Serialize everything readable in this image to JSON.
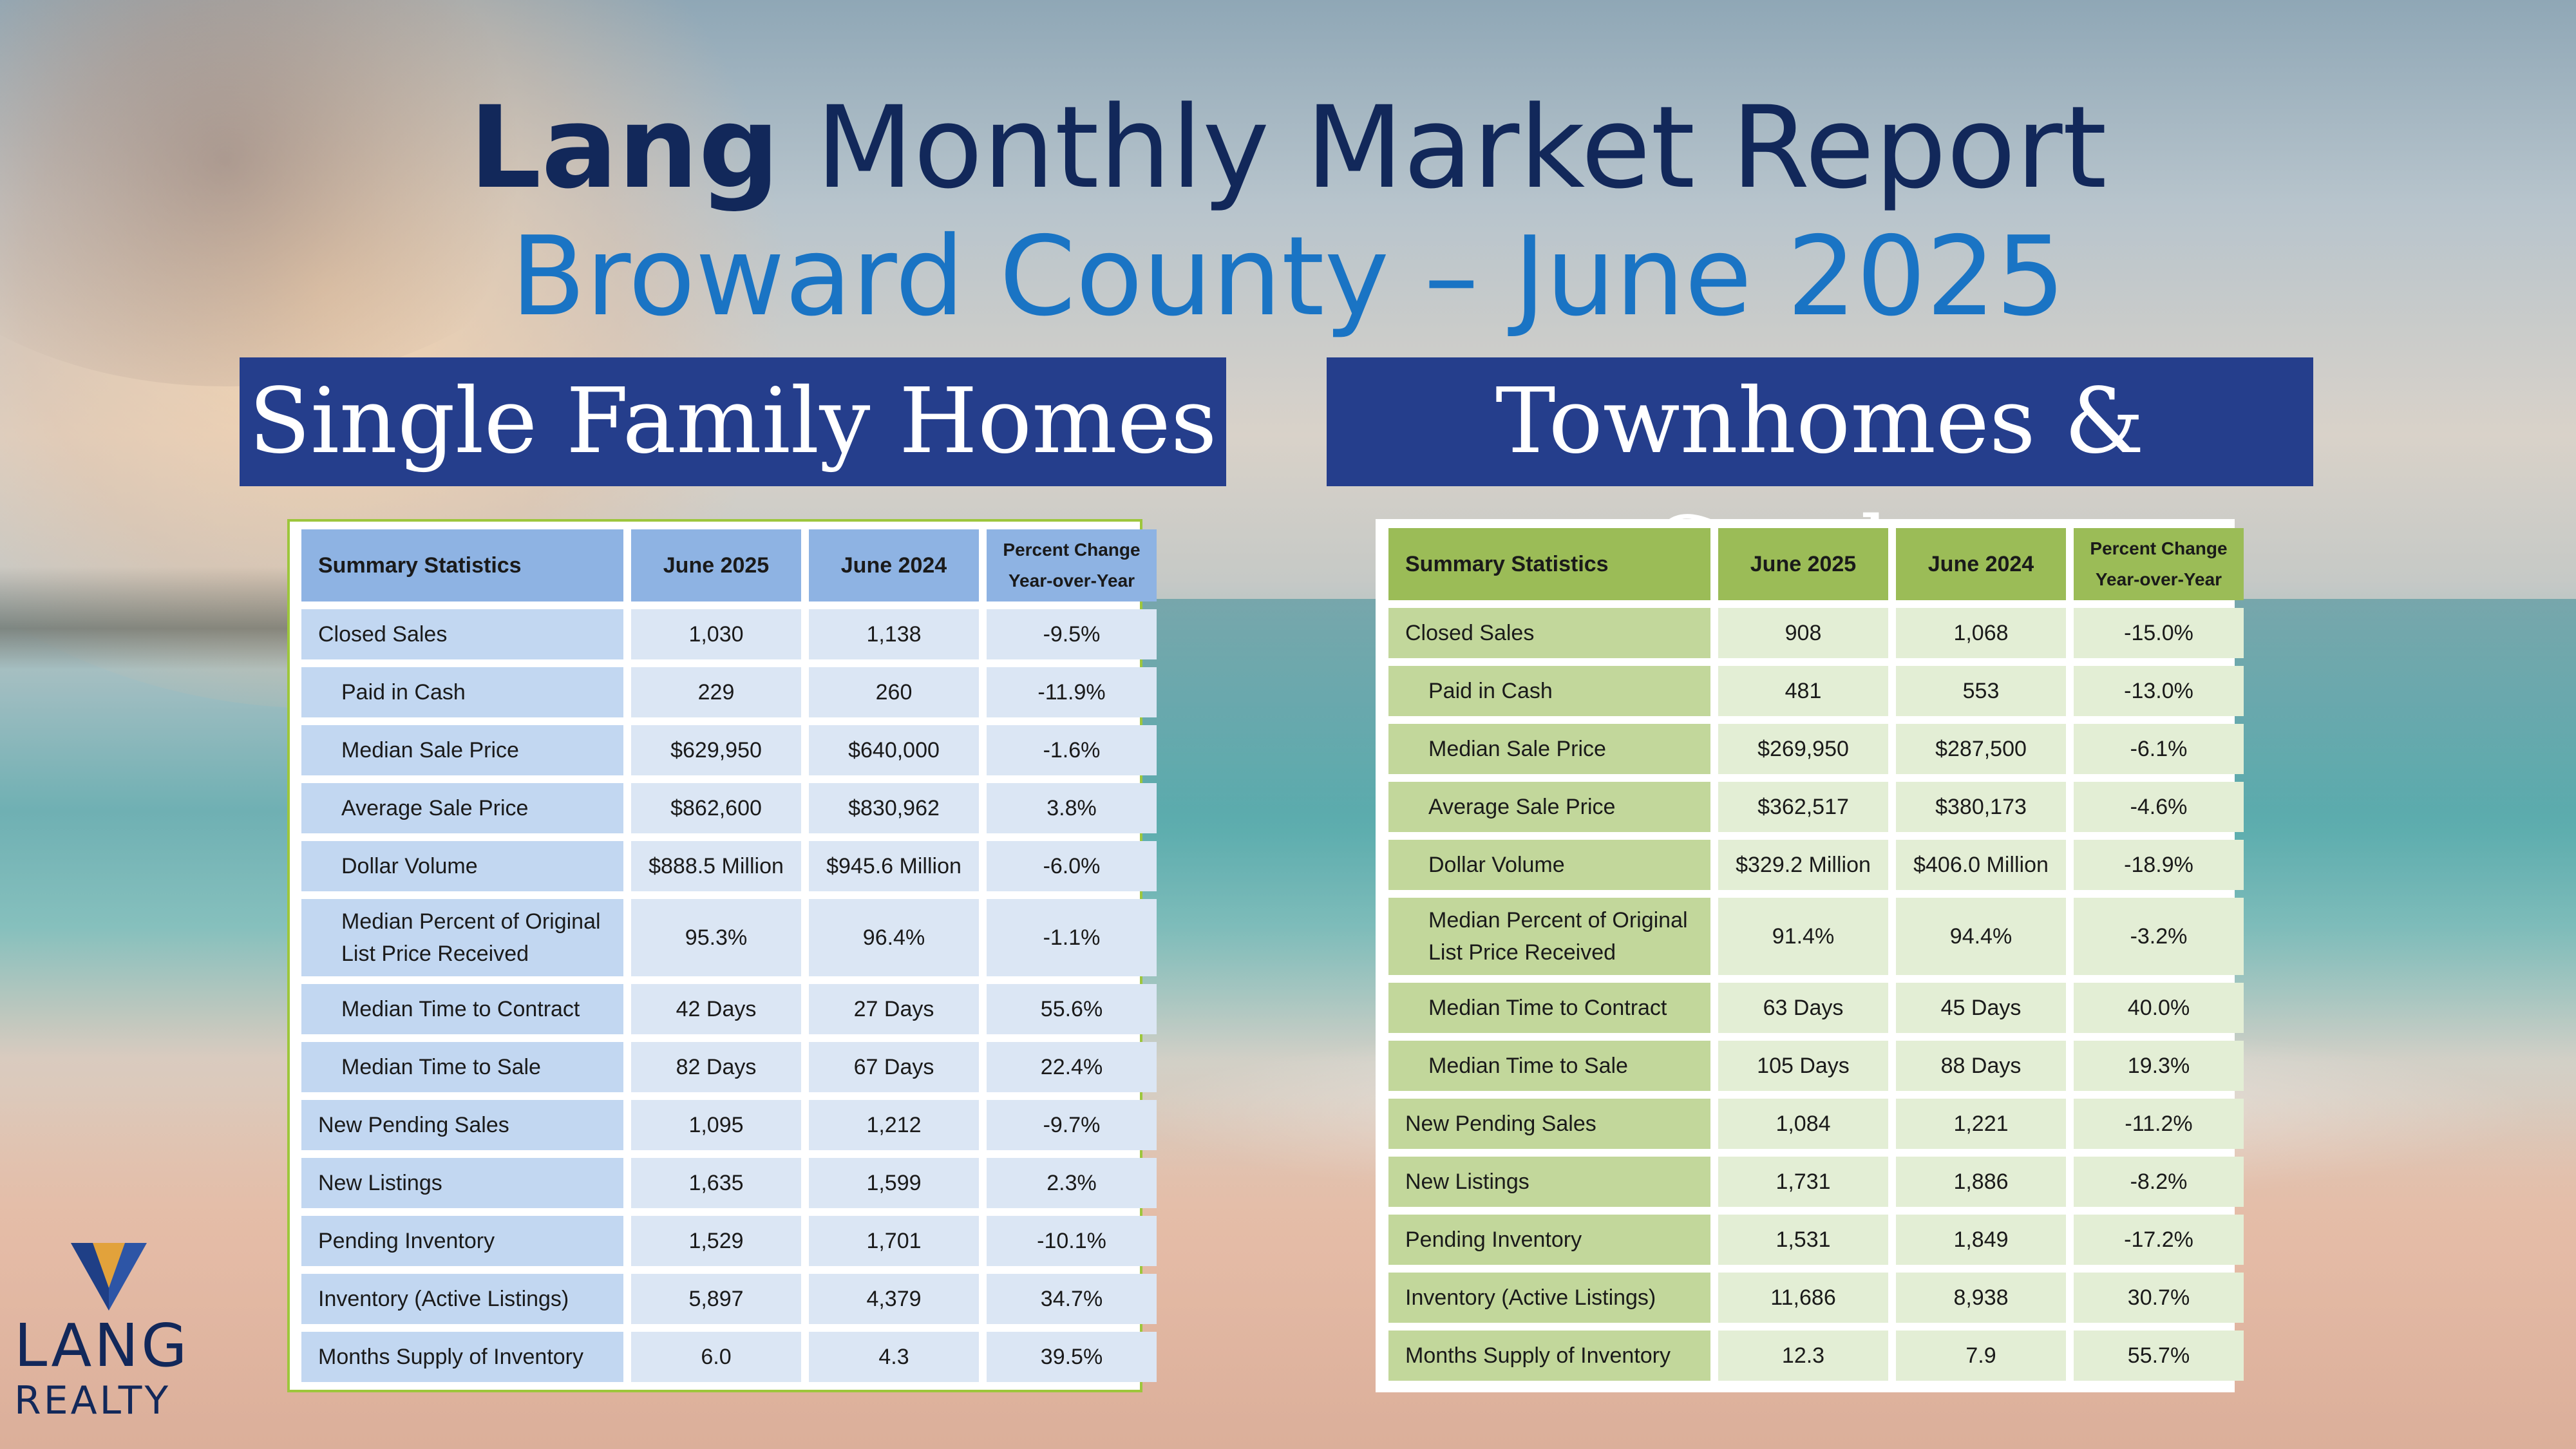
{
  "header": {
    "brand": "Lang",
    "title_rest": "Monthly Market Report",
    "subtitle": "Broward County – June 2025"
  },
  "colors": {
    "title_navy": "#12285a",
    "subtitle_blue": "#1a74c4",
    "banner_navy": "#253e8c",
    "sf_header": "#8eb3e3",
    "tc_header": "#9bbc57",
    "panel_border_green": "#9dc63c"
  },
  "single_family": {
    "banner": "Single Family Homes",
    "headers": [
      "Summary Statistics",
      "June 2025",
      "June 2024",
      "Percent Change",
      "Year-over-Year"
    ],
    "rows": [
      {
        "label": "Closed Sales",
        "v2025": "1,030",
        "v2024": "1,138",
        "pct": "-9.5%"
      },
      {
        "label": "Paid in Cash",
        "v2025": "229",
        "v2024": "260",
        "pct": "-11.9%"
      },
      {
        "label": "Median Sale Price",
        "v2025": "$629,950",
        "v2024": "$640,000",
        "pct": "-1.6%"
      },
      {
        "label": "Average Sale Price",
        "v2025": "$862,600",
        "v2024": "$830,962",
        "pct": "3.8%"
      },
      {
        "label": "Dollar Volume",
        "v2025": "$888.5 Million",
        "v2024": "$945.6 Million",
        "pct": "-6.0%"
      },
      {
        "label": "Median Percent of Original",
        "label2": "List Price Received",
        "v2025": "95.3%",
        "v2024": "96.4%",
        "pct": "-1.1%"
      },
      {
        "label": "Median Time to Contract",
        "v2025": "42 Days",
        "v2024": "27 Days",
        "pct": "55.6%"
      },
      {
        "label": "Median Time to Sale",
        "v2025": "82 Days",
        "v2024": "67 Days",
        "pct": "22.4%"
      },
      {
        "label": "New Pending Sales",
        "v2025": "1,095",
        "v2024": "1,212",
        "pct": "-9.7%"
      },
      {
        "label": "New Listings",
        "v2025": "1,635",
        "v2024": "1,599",
        "pct": "2.3%"
      },
      {
        "label": "Pending Inventory",
        "v2025": "1,529",
        "v2024": "1,701",
        "pct": "-10.1%"
      },
      {
        "label": "Inventory (Active Listings)",
        "v2025": "5,897",
        "v2024": "4,379",
        "pct": "34.7%"
      },
      {
        "label": "Months Supply of Inventory",
        "v2025": "6.0",
        "v2024": "4.3",
        "pct": "39.5%"
      }
    ]
  },
  "townhomes_condos": {
    "banner": "Townhomes & Condos",
    "headers": [
      "Summary Statistics",
      "June 2025",
      "June 2024",
      "Percent Change",
      "Year-over-Year"
    ],
    "rows": [
      {
        "label": "Closed Sales",
        "v2025": "908",
        "v2024": "1,068",
        "pct": "-15.0%"
      },
      {
        "label": "Paid in Cash",
        "v2025": "481",
        "v2024": "553",
        "pct": "-13.0%"
      },
      {
        "label": "Median Sale Price",
        "v2025": "$269,950",
        "v2024": "$287,500",
        "pct": "-6.1%"
      },
      {
        "label": "Average Sale Price",
        "v2025": "$362,517",
        "v2024": "$380,173",
        "pct": "-4.6%"
      },
      {
        "label": "Dollar Volume",
        "v2025": "$329.2 Million",
        "v2024": "$406.0 Million",
        "pct": "-18.9%"
      },
      {
        "label": "Median Percent of Original",
        "label2": "List Price Received",
        "v2025": "91.4%",
        "v2024": "94.4%",
        "pct": "-3.2%"
      },
      {
        "label": "Median Time to Contract",
        "v2025": "63 Days",
        "v2024": "45 Days",
        "pct": "40.0%"
      },
      {
        "label": "Median Time to Sale",
        "v2025": "105 Days",
        "v2024": "88 Days",
        "pct": "19.3%"
      },
      {
        "label": "New Pending Sales",
        "v2025": "1,084",
        "v2024": "1,221",
        "pct": "-11.2%"
      },
      {
        "label": "New Listings",
        "v2025": "1,731",
        "v2024": "1,886",
        "pct": "-8.2%"
      },
      {
        "label": "Pending Inventory",
        "v2025": "1,531",
        "v2024": "1,849",
        "pct": "-17.2%"
      },
      {
        "label": "Inventory (Active Listings)",
        "v2025": "11,686",
        "v2024": "8,938",
        "pct": "30.7%"
      },
      {
        "label": "Months Supply of Inventory",
        "v2025": "12.3",
        "v2024": "7.9",
        "pct": "55.7%"
      }
    ]
  },
  "logo": {
    "word1": "LANG",
    "word2": "REALTY"
  }
}
